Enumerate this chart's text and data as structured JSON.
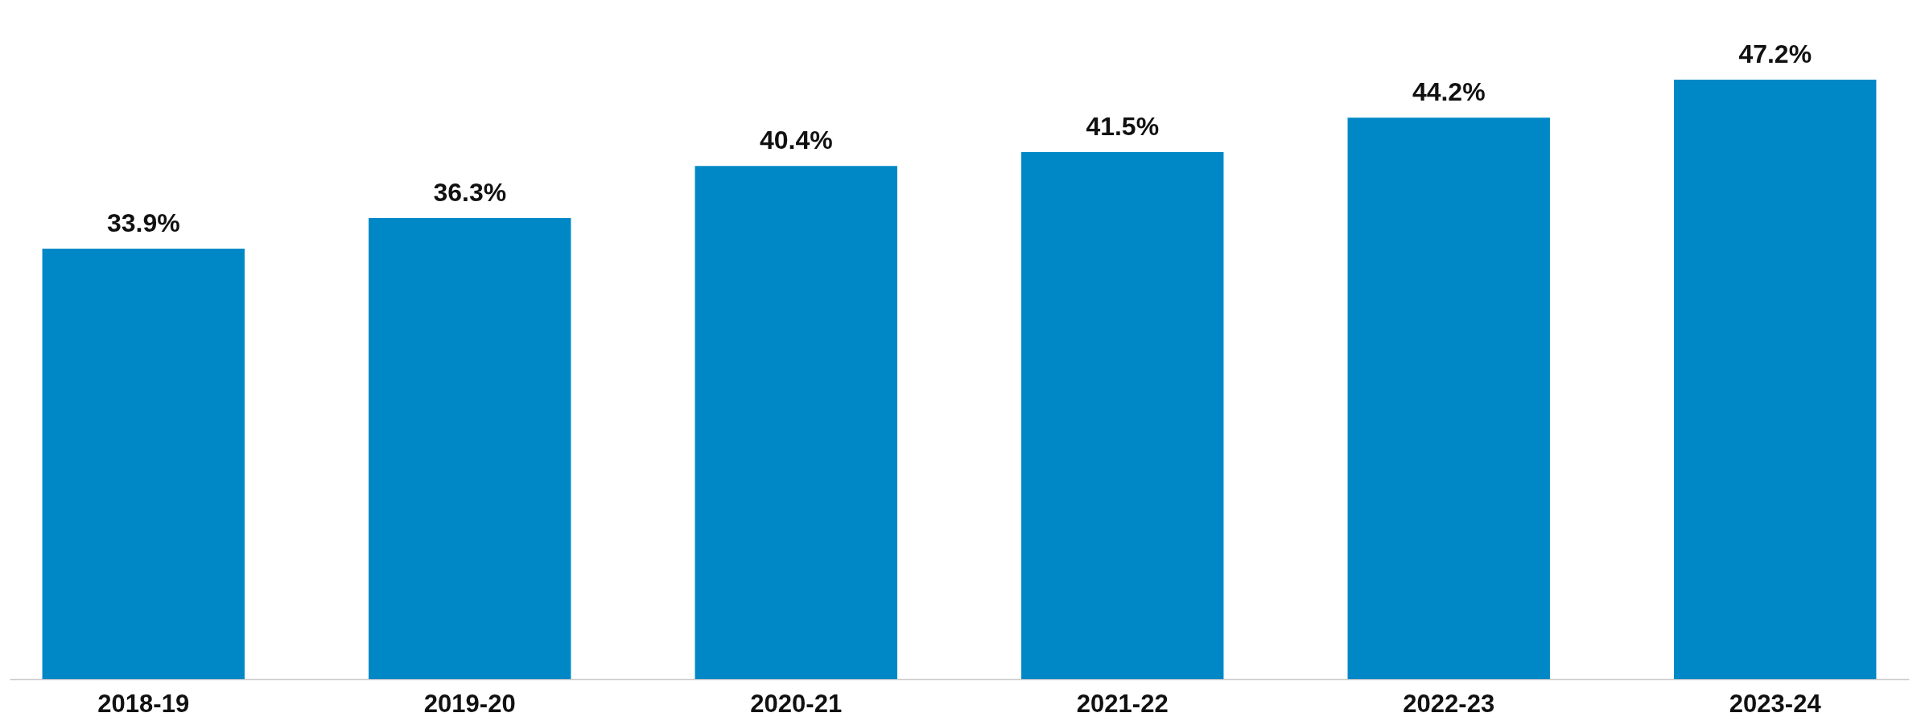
{
  "chart_data": {
    "type": "bar",
    "categories": [
      "2018-19",
      "2019-20",
      "2020-21",
      "2021-22",
      "2022-23",
      "2023-24"
    ],
    "values": [
      33.9,
      36.3,
      40.4,
      41.5,
      44.2,
      47.2
    ],
    "value_labels": [
      "33.9%",
      "36.3%",
      "40.4%",
      "41.5%",
      "44.2%",
      "47.2%"
    ],
    "color": "#0088c6"
  }
}
